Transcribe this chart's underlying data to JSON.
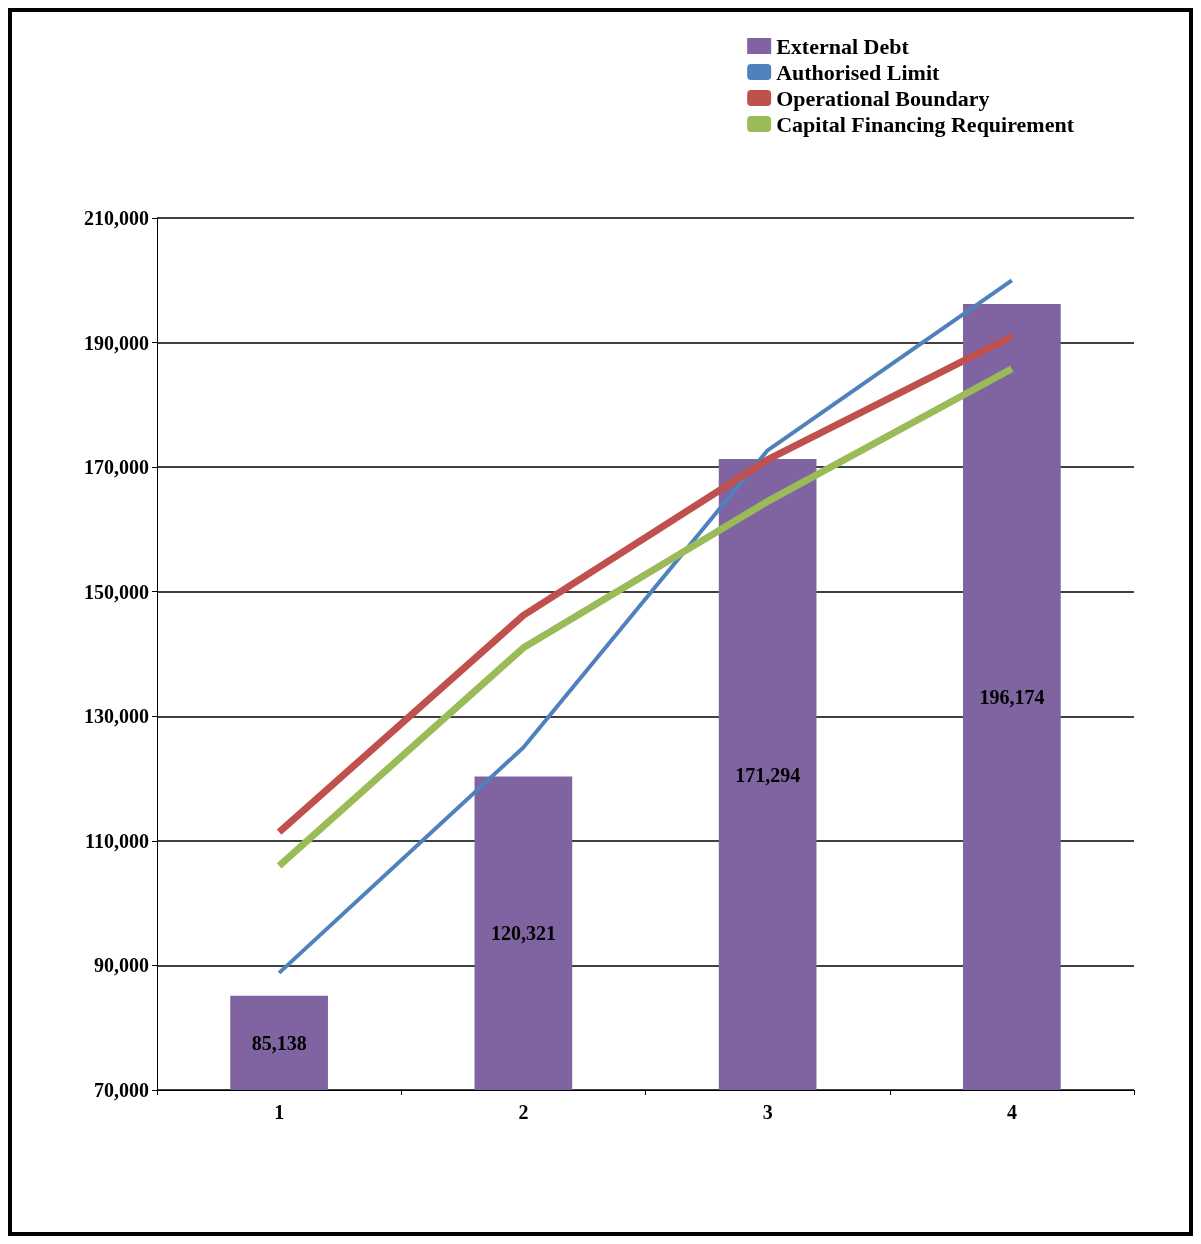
{
  "chart_data": {
    "type": "bar",
    "categories": [
      "1",
      "2",
      "3",
      "4"
    ],
    "series": [
      {
        "name": "External Debt",
        "color": "#8064a2",
        "values": [
          85138,
          120321,
          171294,
          196174
        ],
        "value_labels": [
          "85,138",
          "120,321",
          "171,294",
          "196,174"
        ]
      },
      {
        "name": "Authorised Limit",
        "type": "line",
        "color": "#4f81bd",
        "values": [
          88800,
          125000,
          172700,
          200000
        ]
      },
      {
        "name": "Operational Boundary",
        "type": "line",
        "color": "#c0504d",
        "values": [
          111400,
          146200,
          171200,
          191000
        ]
      },
      {
        "name": "Capital Financing Requirement",
        "type": "line",
        "color": "#9bbb59",
        "values": [
          106000,
          141000,
          164500,
          185800
        ]
      }
    ],
    "ylim": [
      70000,
      210000
    ],
    "yticks": [
      {
        "value": 70000,
        "label": "70,000"
      },
      {
        "value": 90000,
        "label": "90,000"
      },
      {
        "value": 110000,
        "label": "110,000"
      },
      {
        "value": 130000,
        "label": "130,000"
      },
      {
        "value": 150000,
        "label": "150,000"
      },
      {
        "value": 170000,
        "label": "170,000"
      },
      {
        "value": 190000,
        "label": "190,000"
      },
      {
        "value": 210000,
        "label": "210,000"
      }
    ],
    "grid": "y",
    "legend": "top right",
    "marker": "none",
    "line_style": "solid"
  }
}
